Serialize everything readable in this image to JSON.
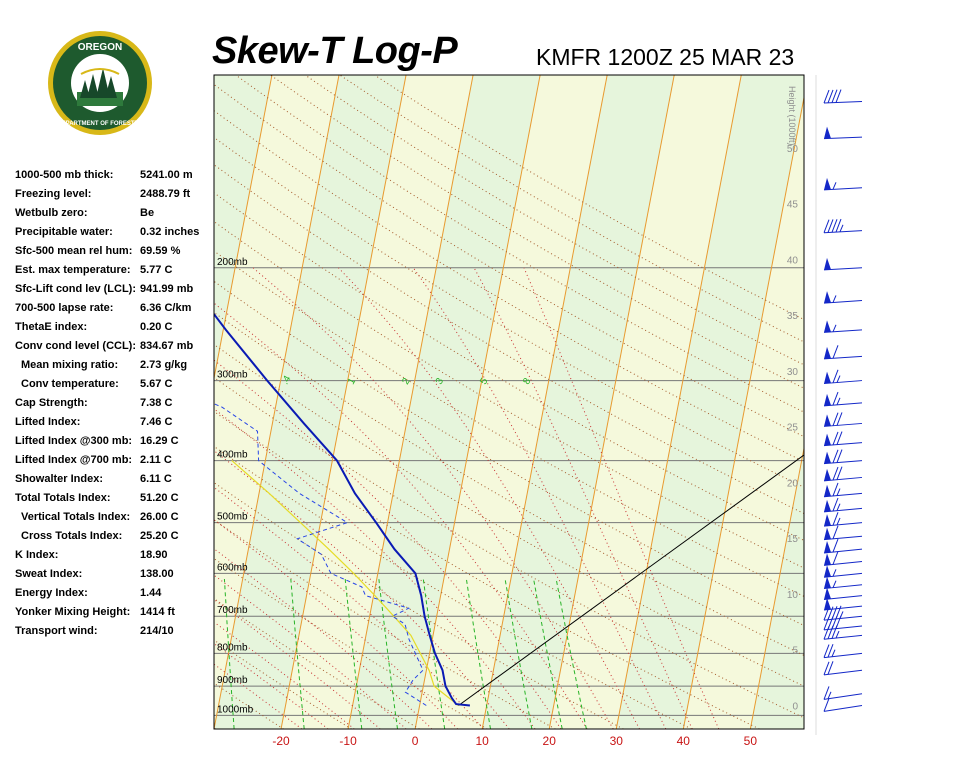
{
  "header": {
    "title": "Skew-T Log-P",
    "station_line": "KMFR 1200Z 25 MAR 23"
  },
  "logo": {
    "top_text": "OREGON",
    "bottom_text": "DEPARTMENT OF FORESTRY"
  },
  "indices": [
    {
      "label": "1000-500 mb thick:",
      "value": "5241.00 m"
    },
    {
      "label": "Freezing level:",
      "value": "2488.79 ft"
    },
    {
      "label": "Wetbulb zero:",
      "value": "Be"
    },
    {
      "label": "Precipitable water:",
      "value": "0.32 inches"
    },
    {
      "label": "Sfc-500 mean rel hum:",
      "value": "69.59 %"
    },
    {
      "label": "Est. max temperature:",
      "value": "5.77 C"
    },
    {
      "label": "Sfc-Lift cond lev (LCL):",
      "value": "941.99 mb"
    },
    {
      "label": "700-500 lapse rate:",
      "value": "6.36 C/km"
    },
    {
      "label": "ThetaE index:",
      "value": "0.20 C"
    },
    {
      "label": "Conv cond level (CCL):",
      "value": "834.67 mb"
    },
    {
      "label": "Mean mixing ratio:",
      "value": "2.73 g/kg",
      "indent": true
    },
    {
      "label": "Conv temperature:",
      "value": "5.67 C",
      "indent": true
    },
    {
      "label": "Cap Strength:",
      "value": "7.38 C"
    },
    {
      "label": "Lifted Index:",
      "value": "7.46 C"
    },
    {
      "label": "Lifted Index @300 mb:",
      "value": "16.29 C"
    },
    {
      "label": "Lifted Index @700 mb:",
      "value": "2.11 C"
    },
    {
      "label": "Showalter Index:",
      "value": "6.11 C"
    },
    {
      "label": "Total Totals Index:",
      "value": "51.20 C"
    },
    {
      "label": "Vertical Totals Index:",
      "value": "26.00 C",
      "indent": true
    },
    {
      "label": "Cross Totals Index:",
      "value": "25.20 C",
      "indent": true
    },
    {
      "label": "K Index:",
      "value": "18.90"
    },
    {
      "label": "Sweat Index:",
      "value": "138.00"
    },
    {
      "label": "Energy Index:",
      "value": "1.44"
    },
    {
      "label": "Yonker Mixing Height:",
      "value": "1414 ft"
    },
    {
      "label": "Transport wind:",
      "value": "214/10"
    }
  ],
  "chart_data": {
    "type": "line",
    "xlim": [
      -30,
      58
    ],
    "ylim_mb": [
      1050,
      100
    ],
    "x_ticks": [
      -20,
      -10,
      0,
      10,
      20,
      30,
      40,
      50
    ],
    "pressure_levels": [
      {
        "p": 200,
        "label": "200mb"
      },
      {
        "p": 300,
        "label": "300mb"
      },
      {
        "p": 400,
        "label": "400mb"
      },
      {
        "p": 500,
        "label": "500mb"
      },
      {
        "p": 600,
        "label": "600mb"
      },
      {
        "p": 700,
        "label": "700mb"
      },
      {
        "p": 800,
        "label": "800mb"
      },
      {
        "p": 900,
        "label": "900mb"
      },
      {
        "p": 1000,
        "label": "1000mb"
      }
    ],
    "height_axis": {
      "label": "Height (1000ft)",
      "ticks": [
        0,
        5,
        10,
        15,
        20,
        25,
        30,
        35,
        40,
        45,
        50
      ]
    },
    "mixing_ratio_labels": [
      ".4",
      "1",
      "2",
      "3",
      "5",
      "8"
    ],
    "colors": {
      "panel_bg": "#f5f9dc",
      "band": "#e6f5dc",
      "isotherm": "#e89a30",
      "dry_adiabat": "#a55a2a",
      "moist_adiabat": "#c83232",
      "mixing_ratio": "#28b428",
      "temperature": "#0a1ab4",
      "dewpoint": "#2846e6",
      "parcel": "#e6dc28",
      "wind_barb": "#1428c8",
      "tick_label_x": "#c81414",
      "height_label": "#909090"
    },
    "series": [
      {
        "name": "Temperature",
        "points": [
          [
            7.5,
            965
          ],
          [
            5.4,
            960
          ],
          [
            4.6,
            940
          ],
          [
            3.3,
            900
          ],
          [
            2.4,
            850
          ],
          [
            0.8,
            800
          ],
          [
            -0.5,
            750
          ],
          [
            -1.8,
            700
          ],
          [
            -2.9,
            650
          ],
          [
            -4.4,
            600
          ],
          [
            -8.2,
            550
          ],
          [
            -11.7,
            500
          ],
          [
            -15.7,
            450
          ],
          [
            -19.3,
            400
          ],
          [
            -25.3,
            350
          ],
          [
            -32,
            300
          ],
          [
            -39.6,
            250
          ],
          [
            -47.4,
            205
          ],
          [
            -53,
            200
          ],
          [
            -55,
            170
          ],
          [
            -58,
            140
          ],
          [
            -62,
            120
          ],
          [
            -65,
            100
          ]
        ]
      },
      {
        "name": "Dewpoint",
        "points": [
          [
            1,
            965
          ],
          [
            -2.5,
            920
          ],
          [
            -1.7,
            880
          ],
          [
            -0.5,
            850
          ],
          [
            -3.5,
            760
          ],
          [
            -4.5,
            720
          ],
          [
            -6.6,
            700
          ],
          [
            -4.4,
            680
          ],
          [
            -11.2,
            650
          ],
          [
            -12,
            630
          ],
          [
            -17,
            600
          ],
          [
            -19,
            560
          ],
          [
            -23,
            530
          ],
          [
            -16,
            500
          ],
          [
            -24,
            450
          ],
          [
            -31,
            400
          ],
          [
            -32,
            360
          ],
          [
            -38,
            330
          ],
          [
            -48,
            300
          ],
          [
            -52,
            240
          ],
          [
            -57,
            200
          ],
          [
            -58,
            170
          ],
          [
            -65,
            130
          ],
          [
            -71,
            110
          ]
        ]
      },
      {
        "name": "Parcel",
        "points": [
          [
            5.8,
            965
          ],
          [
            1.6,
            900
          ],
          [
            0.4,
            850
          ],
          [
            -3.3,
            750
          ],
          [
            -6.4,
            700
          ],
          [
            -9.8,
            650
          ],
          [
            -13.6,
            600
          ],
          [
            -18,
            550
          ],
          [
            -23,
            500
          ],
          [
            -28.5,
            450
          ],
          [
            -35,
            400
          ]
        ]
      }
    ],
    "winds": [
      {
        "p": 965,
        "dir": 170,
        "spd": 10
      },
      {
        "p": 925,
        "dir": 200,
        "spd": 15
      },
      {
        "p": 850,
        "dir": 220,
        "spd": 20
      },
      {
        "p": 800,
        "dir": 225,
        "spd": 25
      },
      {
        "p": 750,
        "dir": 230,
        "spd": 35
      },
      {
        "p": 725,
        "dir": 230,
        "spd": 40
      },
      {
        "p": 700,
        "dir": 230,
        "spd": 45
      },
      {
        "p": 675,
        "dir": 230,
        "spd": 50
      },
      {
        "p": 650,
        "dir": 230,
        "spd": 50
      },
      {
        "p": 625,
        "dir": 230,
        "spd": 55
      },
      {
        "p": 600,
        "dir": 230,
        "spd": 55
      },
      {
        "p": 575,
        "dir": 230,
        "spd": 60
      },
      {
        "p": 550,
        "dir": 230,
        "spd": 60
      },
      {
        "p": 525,
        "dir": 235,
        "spd": 60
      },
      {
        "p": 500,
        "dir": 235,
        "spd": 65
      },
      {
        "p": 475,
        "dir": 235,
        "spd": 65
      },
      {
        "p": 450,
        "dir": 235,
        "spd": 65
      },
      {
        "p": 425,
        "dir": 235,
        "spd": 70
      },
      {
        "p": 400,
        "dir": 240,
        "spd": 70
      },
      {
        "p": 375,
        "dir": 240,
        "spd": 70
      },
      {
        "p": 350,
        "dir": 240,
        "spd": 70
      },
      {
        "p": 325,
        "dir": 240,
        "spd": 65
      },
      {
        "p": 300,
        "dir": 240,
        "spd": 65
      },
      {
        "p": 275,
        "dir": 245,
        "spd": 60
      },
      {
        "p": 250,
        "dir": 245,
        "spd": 55
      },
      {
        "p": 225,
        "dir": 245,
        "spd": 55
      },
      {
        "p": 200,
        "dir": 250,
        "spd": 50
      },
      {
        "p": 175,
        "dir": 250,
        "spd": 45
      },
      {
        "p": 150,
        "dir": 250,
        "spd": 55
      },
      {
        "p": 125,
        "dir": 255,
        "spd": 50
      },
      {
        "p": 110,
        "dir": 255,
        "spd": 40
      }
    ]
  }
}
